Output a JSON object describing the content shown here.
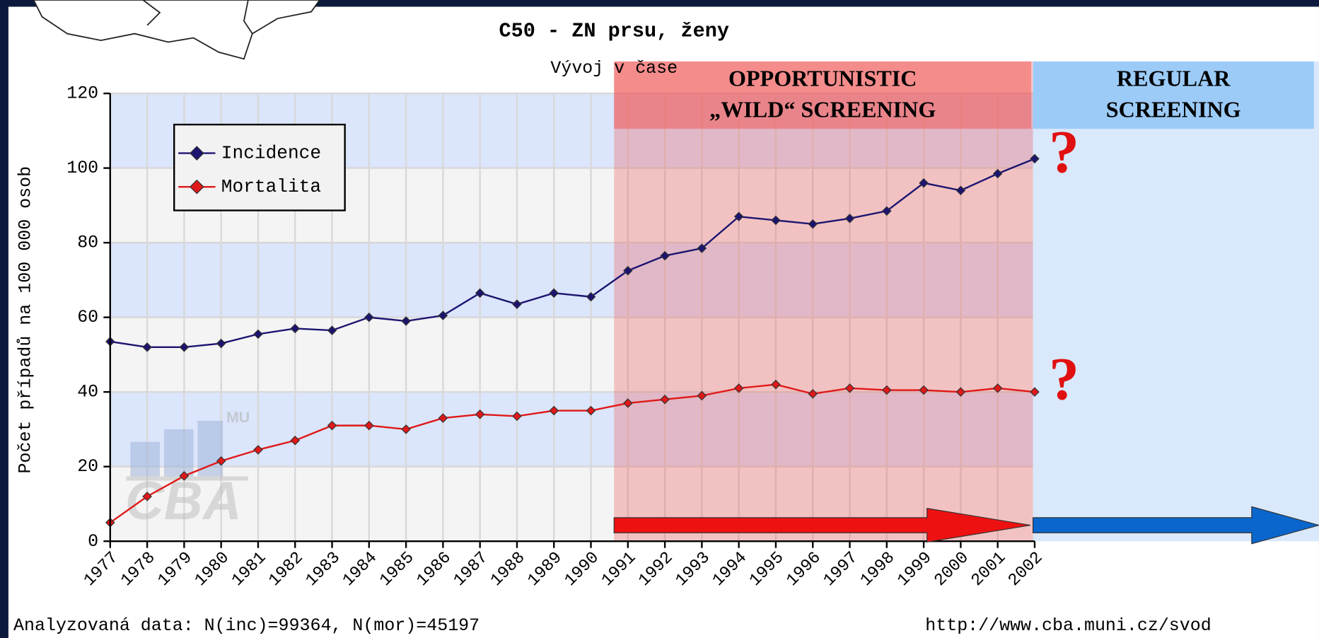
{
  "chart_data": {
    "type": "line",
    "title": "C50 - ZN prsu, ženy",
    "subtitle": "Vývoj v čase",
    "y_label": "Počet případů na 100 000 osob",
    "categories": [
      "1977",
      "1978",
      "1979",
      "1980",
      "1981",
      "1982",
      "1983",
      "1984",
      "1985",
      "1986",
      "1987",
      "1988",
      "1989",
      "1990",
      "1991",
      "1992",
      "1993",
      "1994",
      "1995",
      "1996",
      "1997",
      "1998",
      "1999",
      "2000",
      "2001",
      "2002"
    ],
    "series": [
      {
        "name": "Incidence",
        "color": "#1c1470",
        "values": [
          53.5,
          52,
          52,
          53,
          55.5,
          57,
          56.5,
          60,
          59,
          60.5,
          66.5,
          63.5,
          66.5,
          65.5,
          72.5,
          76.5,
          78.5,
          87,
          86,
          85,
          86.5,
          88.5,
          96,
          94,
          98.5,
          102.5
        ]
      },
      {
        "name": "Mortalita",
        "color": "#e01818",
        "values": [
          5,
          12,
          17.5,
          21.5,
          24.5,
          27,
          31,
          31,
          30,
          33,
          34,
          33.5,
          35,
          35,
          37,
          38,
          39,
          41,
          42,
          39.5,
          41,
          40.5,
          40.5,
          40,
          41,
          40
        ]
      }
    ],
    "ylim": [
      0,
      120
    ],
    "yticks": [
      0,
      20,
      40,
      60,
      80,
      100,
      120
    ],
    "grid": true,
    "legend": "upper left",
    "annotations": [
      "OPPORTUNISTIC",
      "„WILD“ SCREENING",
      "REGULAR",
      "SCREENING",
      "?",
      "?"
    ],
    "watermark": [
      "MU",
      "CBA"
    ]
  },
  "footer": {
    "left": "Analyzovaná data: N(inc)=99364, N(mor)=45197",
    "right": "http://www.cba.muni.cz/svod"
  }
}
